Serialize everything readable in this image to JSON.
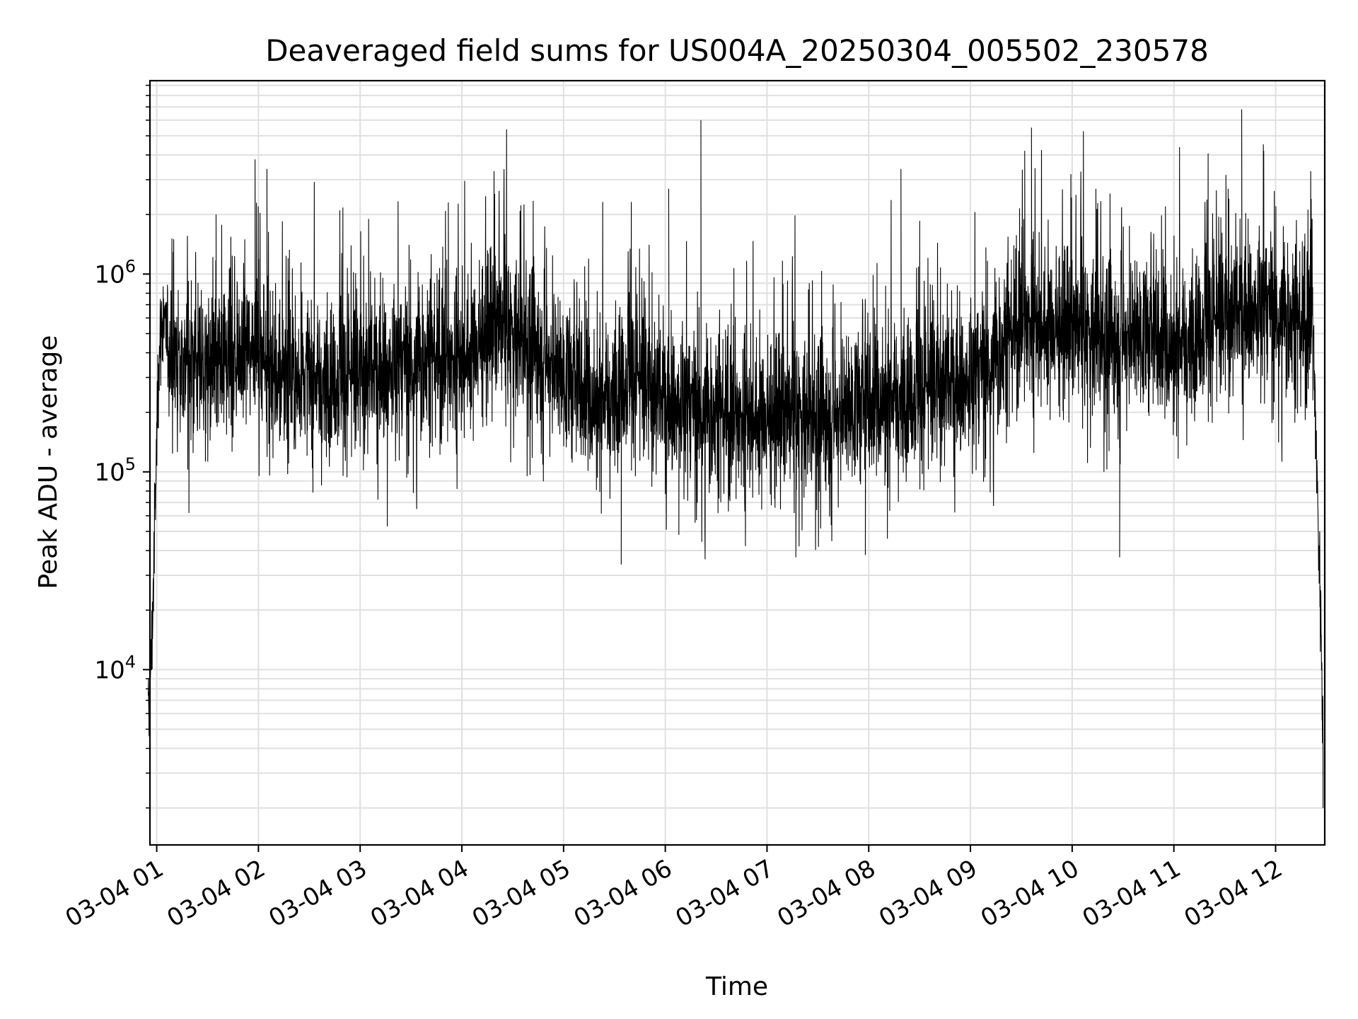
{
  "chart_data": {
    "type": "line",
    "title": "Deaveraged field sums for US004A_20250304_005502_230578",
    "xlabel": "Time",
    "ylabel": "Peak ADU - average",
    "yscale": "log",
    "grid": true,
    "line_color": "#000000",
    "grid_color": "#e0e0e0",
    "xlim": [
      "2025-03-04 00:56",
      "2025-03-04 12:29"
    ],
    "ylim": [
      1300,
      9500000
    ],
    "x_ticks": [
      "03-04 01",
      "03-04 02",
      "03-04 03",
      "03-04 04",
      "03-04 05",
      "03-04 06",
      "03-04 07",
      "03-04 08",
      "03-04 09",
      "03-04 10",
      "03-04 11",
      "03-04 12"
    ],
    "y_ticks": [
      {
        "base": "10",
        "exp": "4",
        "value": 10000
      },
      {
        "base": "10",
        "exp": "5",
        "value": 100000
      },
      {
        "base": "10",
        "exp": "6",
        "value": 1000000
      }
    ],
    "series": [
      {
        "x": [
          "2025-03-04 00:55",
          "2025-03-04 00:57",
          "2025-03-04 00:59",
          "2025-03-04 01:01",
          "2025-03-04 01:03",
          "2025-03-04 01:06",
          "2025-03-04 01:10",
          "2025-03-04 01:20",
          "2025-03-04 01:30",
          "2025-03-04 01:45",
          "2025-03-04 01:57",
          "2025-03-04 02:10",
          "2025-03-04 02:25",
          "2025-03-04 02:40",
          "2025-03-04 03:00",
          "2025-03-04 03:20",
          "2025-03-04 03:40",
          "2025-03-04 04:00",
          "2025-03-04 04:20",
          "2025-03-04 04:30",
          "2025-03-04 04:45",
          "2025-03-04 05:00",
          "2025-03-04 05:20",
          "2025-03-04 05:40",
          "2025-03-04 06:00",
          "2025-03-04 06:20",
          "2025-03-04 06:40",
          "2025-03-04 07:00",
          "2025-03-04 07:20",
          "2025-03-04 07:40",
          "2025-03-04 08:00",
          "2025-03-04 08:20",
          "2025-03-04 08:40",
          "2025-03-04 09:00",
          "2025-03-04 09:20",
          "2025-03-04 09:30",
          "2025-03-04 09:40",
          "2025-03-04 10:00",
          "2025-03-04 10:20",
          "2025-03-04 10:40",
          "2025-03-04 11:00",
          "2025-03-04 11:20",
          "2025-03-04 11:40",
          "2025-03-04 12:00",
          "2025-03-04 12:15",
          "2025-03-04 12:22",
          "2025-03-04 12:25",
          "2025-03-04 12:27",
          "2025-03-04 12:28"
        ],
        "y": [
          5000,
          12000,
          60000,
          350000,
          600000,
          450000,
          400000,
          350000,
          330000,
          380000,
          480000,
          300000,
          290000,
          300000,
          320000,
          330000,
          370000,
          370000,
          550000,
          500000,
          430000,
          300000,
          220000,
          330000,
          230000,
          200000,
          190000,
          190000,
          190000,
          200000,
          220000,
          250000,
          280000,
          280000,
          420000,
          600000,
          550000,
          520000,
          480000,
          500000,
          420000,
          580000,
          650000,
          650000,
          530000,
          600000,
          60000,
          15000,
          5000
        ]
      }
    ],
    "spikes": [
      {
        "x": "2025-03-04 01:10",
        "y": 1500000
      },
      {
        "x": "2025-03-04 01:35",
        "y": 2000000
      },
      {
        "x": "2025-03-04 01:58",
        "y": 3800000
      },
      {
        "x": "2025-03-04 02:05",
        "y": 3400000
      },
      {
        "x": "2025-03-04 02:48",
        "y": 2100000
      },
      {
        "x": "2025-03-04 03:05",
        "y": 1900000
      },
      {
        "x": "2025-03-04 03:52",
        "y": 2300000
      },
      {
        "x": "2025-03-04 06:02",
        "y": 2700000
      },
      {
        "x": "2025-03-04 06:21",
        "y": 6000000
      },
      {
        "x": "2025-03-04 08:19",
        "y": 3400000
      },
      {
        "x": "2025-03-04 09:32",
        "y": 4200000
      },
      {
        "x": "2025-03-04 09:36",
        "y": 5500000
      },
      {
        "x": "2025-03-04 10:14",
        "y": 2700000
      },
      {
        "x": "2025-03-04 11:32",
        "y": 2700000
      },
      {
        "x": "2025-03-04 11:40",
        "y": 6800000
      },
      {
        "x": "2025-03-04 11:53",
        "y": 4200000
      },
      {
        "x": "2025-03-04 12:21",
        "y": 2400000
      }
    ],
    "dips": [
      {
        "x": "2025-03-04 01:19",
        "y": 62000
      },
      {
        "x": "2025-03-04 03:16",
        "y": 53000
      },
      {
        "x": "2025-03-04 05:34",
        "y": 34000
      },
      {
        "x": "2025-03-04 06:08",
        "y": 48000
      },
      {
        "x": "2025-03-04 07:17",
        "y": 37000
      },
      {
        "x": "2025-03-04 07:58",
        "y": 38000
      },
      {
        "x": "2025-03-04 08:11",
        "y": 46000
      },
      {
        "x": "2025-03-04 10:28",
        "y": 37000
      },
      {
        "x": "2025-03-04 12:28",
        "y": 2000
      }
    ]
  }
}
